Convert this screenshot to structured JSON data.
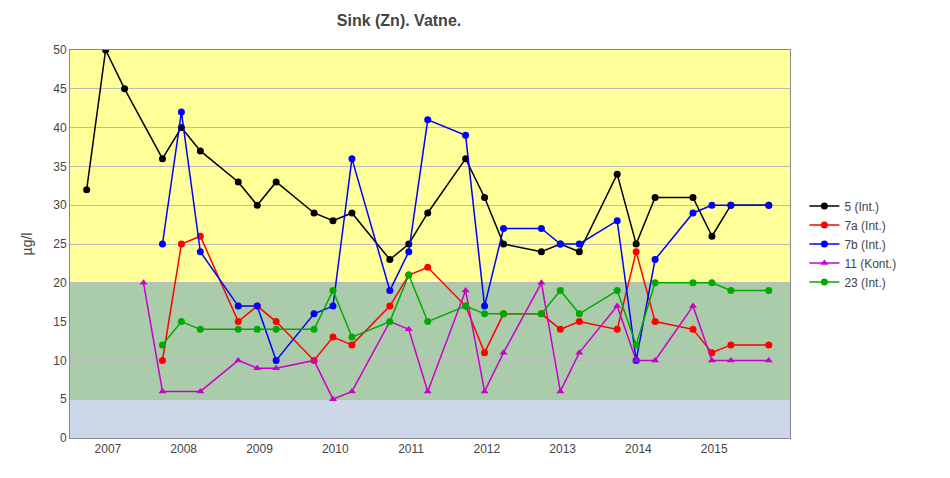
{
  "chart_data": {
    "type": "line",
    "title": "Sink (Zn). Vatne.",
    "ylabel": "µg/l",
    "xlim": [
      2006.5,
      2016.0
    ],
    "xticks": [
      2007,
      2008,
      2009,
      2010,
      2011,
      2012,
      2013,
      2014,
      2015
    ],
    "ylim": [
      0,
      50
    ],
    "yticks": [
      0,
      5,
      10,
      15,
      20,
      25,
      30,
      35,
      40,
      45,
      50
    ],
    "grid": "y",
    "legend": "right",
    "bands": [
      {
        "from": 0,
        "to": 5,
        "color": "#ccd8e8"
      },
      {
        "from": 5,
        "to": 20,
        "color": "#aaccaa"
      },
      {
        "from": 20,
        "to": 50,
        "color": "#ffff99"
      }
    ],
    "series": [
      {
        "name": "5 (Int.)",
        "color": "#000000",
        "marker": "circle",
        "x": [
          2006.72,
          2006.97,
          2007.22,
          2007.72,
          2007.97,
          2008.22,
          2008.72,
          2008.97,
          2009.22,
          2009.72,
          2009.97,
          2010.22,
          2010.72,
          2010.97,
          2011.22,
          2011.72,
          2011.97,
          2012.22,
          2012.72,
          2012.97,
          2013.22,
          2013.72,
          2013.97,
          2014.22,
          2014.72,
          2014.97,
          2015.22,
          2015.72
        ],
        "values": [
          32,
          50,
          45,
          36,
          40,
          37,
          33,
          30,
          33,
          29,
          28,
          29,
          23,
          25,
          29,
          36,
          31,
          25,
          24,
          25,
          24,
          34,
          25,
          31,
          31,
          26,
          30,
          30
        ]
      },
      {
        "name": "7a (Int.)",
        "color": "#ff0000",
        "marker": "circle",
        "x": [
          2007.72,
          2007.97,
          2008.22,
          2008.72,
          2008.97,
          2009.22,
          2009.72,
          2009.97,
          2010.22,
          2010.72,
          2010.97,
          2011.22,
          2011.72,
          2011.97,
          2012.22,
          2012.72,
          2012.97,
          2013.22,
          2013.72,
          2013.97,
          2014.22,
          2014.72,
          2014.97,
          2015.22,
          2015.72
        ],
        "values": [
          10,
          25,
          26,
          15,
          17,
          15,
          10,
          13,
          12,
          17,
          21,
          22,
          17,
          11,
          16,
          16,
          14,
          15,
          14,
          24,
          15,
          14,
          11,
          12,
          12
        ]
      },
      {
        "name": "7b (Int.)",
        "color": "#0000ff",
        "marker": "circle",
        "x": [
          2007.72,
          2007.97,
          2008.22,
          2008.72,
          2008.97,
          2009.22,
          2009.72,
          2009.97,
          2010.22,
          2010.72,
          2010.97,
          2011.22,
          2011.72,
          2011.97,
          2012.22,
          2012.72,
          2012.97,
          2013.22,
          2013.72,
          2013.97,
          2014.22,
          2014.72,
          2014.97,
          2015.22,
          2015.72
        ],
        "values": [
          25,
          42,
          24,
          17,
          17,
          10,
          16,
          17,
          36,
          19,
          24,
          41,
          39,
          17,
          27,
          27,
          25,
          25,
          28,
          10,
          23,
          29,
          30,
          30,
          30
        ]
      },
      {
        "name": "11 (Kont.)",
        "color": "#cc00cc",
        "marker": "triangle-up",
        "x": [
          2007.47,
          2007.72,
          2008.22,
          2008.72,
          2008.97,
          2009.22,
          2009.72,
          2009.97,
          2010.22,
          2010.72,
          2010.97,
          2011.22,
          2011.72,
          2011.97,
          2012.22,
          2012.72,
          2012.97,
          2013.22,
          2013.72,
          2013.97,
          2014.22,
          2014.72,
          2014.97,
          2015.22,
          2015.72
        ],
        "values": [
          20,
          6,
          6,
          10,
          9,
          9,
          10,
          5,
          6,
          15,
          14,
          6,
          19,
          6,
          11,
          20,
          6,
          11,
          17,
          10,
          10,
          17,
          10,
          10,
          10
        ]
      },
      {
        "name": "23 (Int.)",
        "color": "#00aa00",
        "marker": "circle",
        "x": [
          2007.72,
          2007.97,
          2008.22,
          2008.72,
          2008.97,
          2009.22,
          2009.72,
          2009.97,
          2010.22,
          2010.72,
          2010.97,
          2011.22,
          2011.72,
          2011.97,
          2012.22,
          2012.72,
          2012.97,
          2013.22,
          2013.72,
          2013.97,
          2014.22,
          2014.72,
          2014.97,
          2015.22,
          2015.72
        ],
        "values": [
          12,
          15,
          14,
          14,
          14,
          14,
          14,
          19,
          13,
          15,
          21,
          15,
          17,
          16,
          16,
          16,
          19,
          16,
          19,
          12,
          20,
          20,
          20,
          19,
          19
        ]
      }
    ]
  }
}
